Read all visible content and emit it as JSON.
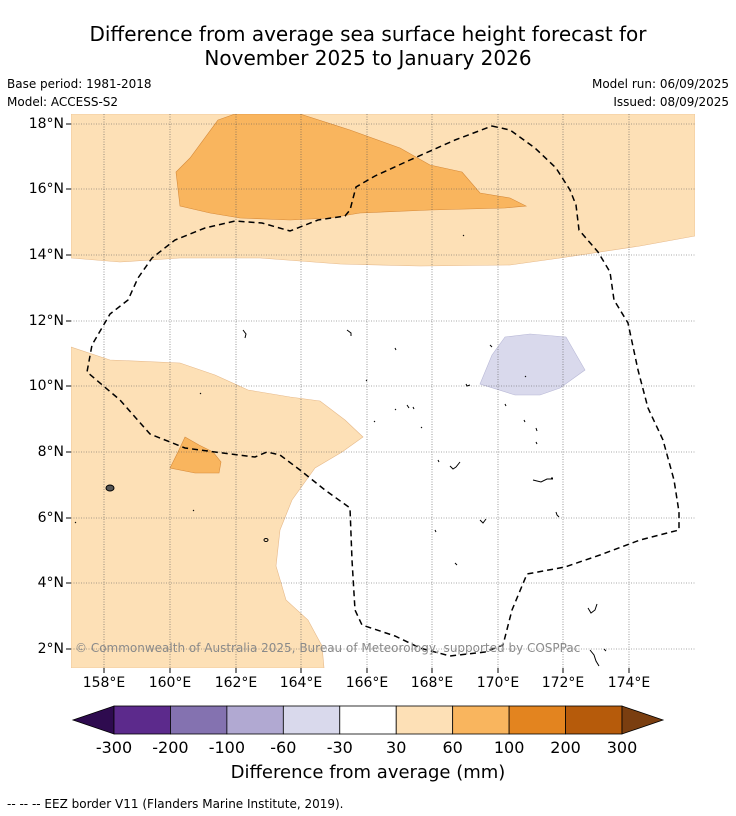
{
  "title_line1": "Difference from average sea surface height forecast for",
  "title_line2": "November 2025 to January 2026",
  "base_period": "Base period: 1981-2018",
  "model": "Model: ACCESS-S2",
  "model_run": "Model run: 06/09/2025",
  "issued": "Issued: 08/09/2025",
  "lat_labels": [
    "18°N",
    "16°N",
    "14°N",
    "12°N",
    "10°N",
    "8°N",
    "6°N",
    "4°N",
    "2°N"
  ],
  "lon_labels": [
    "158°E",
    "160°E",
    "162°E",
    "164°E",
    "166°E",
    "168°E",
    "170°E",
    "172°E",
    "174°E"
  ],
  "copyright": "© Commonwealth of Australia 2025, Bureau of Meteorology, supported by COSPPac",
  "colorbar": {
    "ticks": [
      "-300",
      "-200",
      "-100",
      "-60",
      "-30",
      "30",
      "60",
      "100",
      "200",
      "300"
    ],
    "colors": [
      "#2e0b4f",
      "#5c2a8c",
      "#8472b0",
      "#b1a9d2",
      "#d9d9ec",
      "#ffffff",
      "#fde0b6",
      "#f9b55e",
      "#e3841f",
      "#b65b0b",
      "#7a3e10"
    ],
    "label": "Difference from average (mm)"
  },
  "footer": "--  --  -- EEZ border V11 (Flanders Marine Institute, 2019)."
}
